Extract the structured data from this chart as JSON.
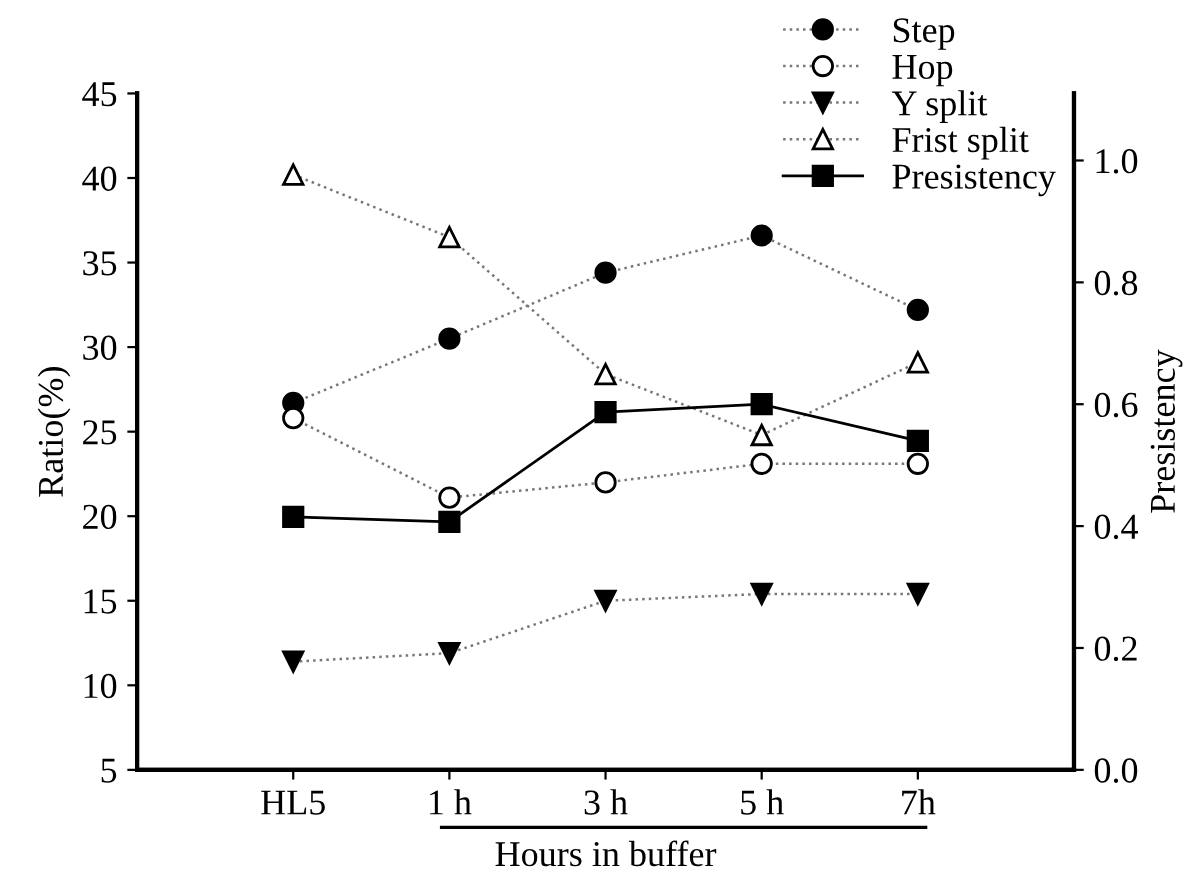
{
  "chart_data": {
    "type": "line",
    "categories": [
      "HL5",
      "1 h",
      "3 h",
      "5 h",
      "7h"
    ],
    "xlabel": "Hours in buffer",
    "ylabel": "Ratio(%)",
    "y2label": "Presistency",
    "ylim": [
      5,
      45
    ],
    "yticks": [
      5,
      10,
      15,
      20,
      25,
      30,
      35,
      40,
      45
    ],
    "y2lim": [
      0,
      1.11
    ],
    "y2ticks": [
      {
        "value": 0,
        "label": "0.0"
      },
      {
        "value": 0.2,
        "label": "0.2"
      },
      {
        "value": 0.4,
        "label": "0.4"
      },
      {
        "value": 0.6,
        "label": "0.6"
      },
      {
        "value": 0.8,
        "label": "0.8"
      },
      {
        "value": 1.0,
        "label": "1.0"
      }
    ],
    "grid": false,
    "legend": "top right",
    "series": [
      {
        "name": "Step",
        "color": "#000000",
        "marker": "circle",
        "line_style": "dotted",
        "values": [
          26.7,
          30.5,
          34.4,
          36.6,
          32.2
        ]
      },
      {
        "name": "Hop",
        "color": "#000000",
        "marker": "circle-open",
        "line_style": "dotted",
        "values": [
          25.8,
          21.1,
          22.0,
          23.1,
          23.1
        ]
      },
      {
        "name": "Y split",
        "color": "#000000",
        "marker": "triangle-down",
        "line_style": "dotted",
        "values": [
          11.4,
          11.9,
          15.0,
          15.4,
          15.4
        ]
      },
      {
        "name": "Frist split",
        "color": "#000000",
        "marker": "triangle-open",
        "line_style": "dotted",
        "values": [
          40.2,
          36.5,
          28.4,
          24.8,
          29.1
        ]
      },
      {
        "name": "Presistency",
        "color": "#000000",
        "marker": "square",
        "line_style": "solid",
        "axis": "y2",
        "values": [
          0.415,
          0.407,
          0.587,
          0.6,
          0.54
        ]
      }
    ]
  }
}
